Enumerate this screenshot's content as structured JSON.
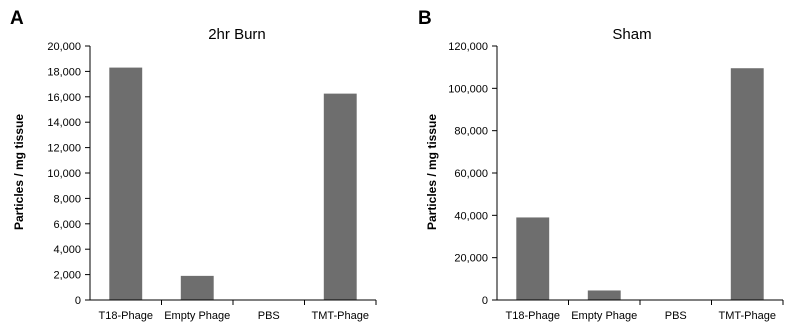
{
  "chart_data": [
    {
      "panel_label": "A",
      "type": "bar",
      "title": "2hr Burn",
      "xlabel": "",
      "ylabel": "Particles / mg tissue",
      "categories": [
        "T18-Phage",
        "Empty Phage",
        "PBS",
        "TMT-Phage"
      ],
      "values": [
        18300,
        1900,
        0,
        16250
      ],
      "ylim": [
        0,
        20000
      ],
      "yticks": [
        0,
        2000,
        4000,
        6000,
        8000,
        10000,
        12000,
        14000,
        16000,
        18000,
        20000
      ],
      "ytick_labels": [
        "0",
        "2,000",
        "4,000",
        "6,000",
        "8,000",
        "10,000",
        "12,000",
        "14,000",
        "16,000",
        "18,000",
        "20,000"
      ],
      "bar_color": "#6e6e6e",
      "grid": false,
      "legend": "none"
    },
    {
      "panel_label": "B",
      "type": "bar",
      "title": "Sham",
      "xlabel": "",
      "ylabel": "Particles / mg tissue",
      "categories": [
        "T18-Phage",
        "Empty Phage",
        "PBS",
        "TMT-Phage"
      ],
      "values": [
        39000,
        4500,
        0,
        109500
      ],
      "ylim": [
        0,
        120000
      ],
      "yticks": [
        0,
        20000,
        40000,
        60000,
        80000,
        100000,
        120000
      ],
      "ytick_labels": [
        "0",
        "20,000",
        "40,000",
        "60,000",
        "80,000",
        "100,000",
        "120,000"
      ],
      "bar_color": "#6e6e6e",
      "grid": false,
      "legend": "none"
    }
  ]
}
